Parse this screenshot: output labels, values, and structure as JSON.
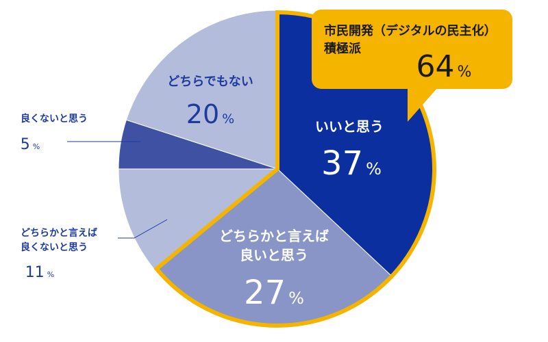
{
  "chart_data": {
    "type": "pie",
    "unit": "%",
    "slices": [
      {
        "label_lines": [
          "いいと思う"
        ],
        "value": 37,
        "color": "#0b2f9e",
        "label_color": "#ffffff"
      },
      {
        "label_lines": [
          "どちらかと言えば",
          "良いと思う"
        ],
        "value": 27,
        "color": "#8995c6",
        "label_color": "#ffffff"
      },
      {
        "label_lines": [
          "どちらかと言えば",
          "良くないと思う"
        ],
        "value": 11,
        "color": "#b4bcdc",
        "label_color": "#1d3a9e"
      },
      {
        "label_lines": [
          "良くないと思う"
        ],
        "value": 5,
        "color": "#3f51a3",
        "label_color": "#1d3a9e"
      },
      {
        "label_lines": [
          "どちらでもない"
        ],
        "value": 20,
        "color": "#b4bcdc",
        "label_color": "#1d3a9e"
      }
    ],
    "callout": {
      "title_lines": [
        "市民開発（デジタルの民主化）",
        "積極派"
      ],
      "value": 64,
      "color": "#f5b400"
    }
  }
}
